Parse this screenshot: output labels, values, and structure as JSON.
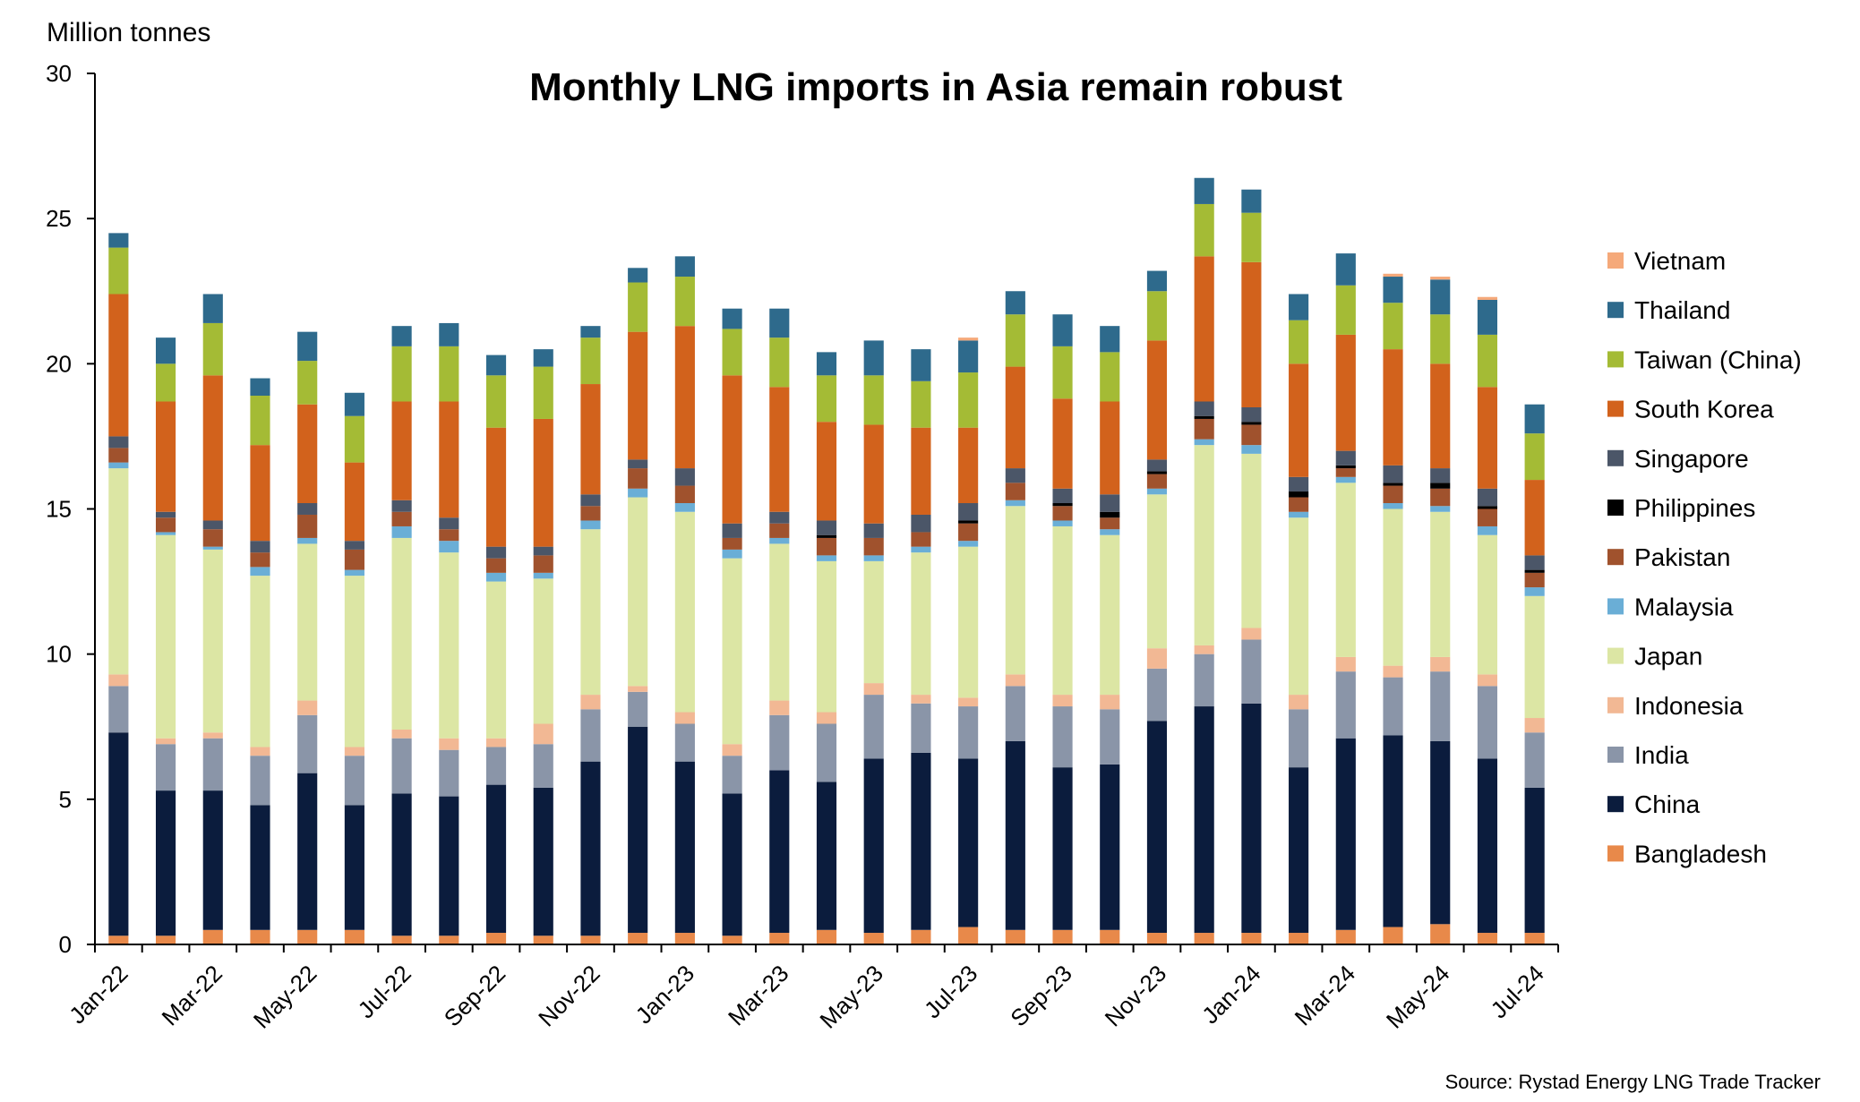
{
  "chart_data": {
    "type": "bar",
    "stacked": true,
    "title": "Monthly LNG imports in Asia remain robust",
    "ylabel": "Million tonnes",
    "source": "Source: Rystad Energy LNG Trade Tracker",
    "ylim": [
      0,
      30
    ],
    "yticks": [
      "0",
      "5",
      "10",
      "15",
      "20",
      "25",
      "30"
    ],
    "grid": false,
    "legend_position": "right",
    "x_tick_labels": [
      "Jan-22",
      "Mar-22",
      "May-22",
      "Jul-22",
      "Sep-22",
      "Nov-22",
      "Jan-23",
      "Mar-23",
      "May-23",
      "Jul-23",
      "Sep-23",
      "Nov-23",
      "Jan-24",
      "Mar-24",
      "May-24",
      "Jul-24"
    ],
    "categories": [
      "Jan-22",
      "Feb-22",
      "Mar-22",
      "Apr-22",
      "May-22",
      "Jun-22",
      "Jul-22",
      "Aug-22",
      "Sep-22",
      "Oct-22",
      "Nov-22",
      "Dec-22",
      "Jan-23",
      "Feb-23",
      "Mar-23",
      "Apr-23",
      "May-23",
      "Jun-23",
      "Jul-23",
      "Aug-23",
      "Sep-23",
      "Oct-23",
      "Nov-23",
      "Dec-23",
      "Jan-24",
      "Feb-24",
      "Mar-24",
      "Apr-24",
      "May-24",
      "Jun-24",
      "Jul-24"
    ],
    "series": [
      {
        "name": "Bangladesh",
        "color": "#E8894A",
        "values": [
          0.3,
          0.3,
          0.5,
          0.5,
          0.5,
          0.5,
          0.3,
          0.3,
          0.4,
          0.3,
          0.3,
          0.4,
          0.4,
          0.3,
          0.4,
          0.5,
          0.4,
          0.5,
          0.6,
          0.5,
          0.5,
          0.5,
          0.4,
          0.4,
          0.4,
          0.4,
          0.5,
          0.6,
          0.7,
          0.4,
          0.4
        ]
      },
      {
        "name": "China",
        "color": "#0B1C3D",
        "values": [
          7.0,
          5.0,
          4.8,
          4.3,
          5.4,
          4.3,
          4.9,
          4.8,
          5.1,
          5.1,
          6.0,
          7.1,
          5.9,
          4.9,
          5.6,
          5.1,
          6.0,
          6.1,
          5.8,
          6.5,
          5.6,
          5.7,
          7.3,
          7.8,
          7.9,
          5.7,
          6.6,
          6.6,
          6.3,
          6.0,
          5.0
        ]
      },
      {
        "name": "India",
        "color": "#8A95A8",
        "values": [
          1.6,
          1.6,
          1.8,
          1.7,
          2.0,
          1.7,
          1.9,
          1.6,
          1.3,
          1.5,
          1.8,
          1.2,
          1.3,
          1.3,
          1.9,
          2.0,
          2.2,
          1.7,
          1.8,
          1.9,
          2.1,
          1.9,
          1.8,
          1.8,
          2.2,
          2.0,
          2.3,
          2.0,
          2.4,
          2.5,
          1.9
        ]
      },
      {
        "name": "Indonesia",
        "color": "#F2B894",
        "values": [
          0.4,
          0.2,
          0.2,
          0.3,
          0.5,
          0.3,
          0.3,
          0.4,
          0.3,
          0.7,
          0.5,
          0.2,
          0.4,
          0.4,
          0.5,
          0.4,
          0.4,
          0.3,
          0.3,
          0.4,
          0.4,
          0.5,
          0.7,
          0.3,
          0.4,
          0.5,
          0.5,
          0.4,
          0.5,
          0.4,
          0.5
        ]
      },
      {
        "name": "Japan",
        "color": "#DCE6A4",
        "values": [
          7.1,
          7.0,
          6.3,
          5.9,
          5.4,
          5.9,
          6.6,
          6.4,
          5.4,
          5.0,
          5.7,
          6.5,
          6.9,
          6.4,
          5.4,
          5.2,
          4.2,
          4.9,
          5.2,
          5.8,
          5.8,
          5.5,
          5.3,
          6.9,
          6.0,
          6.1,
          6.0,
          5.4,
          5.0,
          4.8,
          4.2
        ]
      },
      {
        "name": "Malaysia",
        "color": "#6AAED6",
        "values": [
          0.2,
          0.1,
          0.1,
          0.3,
          0.2,
          0.2,
          0.4,
          0.4,
          0.3,
          0.2,
          0.3,
          0.3,
          0.3,
          0.3,
          0.2,
          0.2,
          0.2,
          0.2,
          0.2,
          0.2,
          0.2,
          0.2,
          0.2,
          0.2,
          0.3,
          0.2,
          0.2,
          0.2,
          0.2,
          0.3,
          0.3
        ]
      },
      {
        "name": "Pakistan",
        "color": "#A0522D",
        "values": [
          0.5,
          0.5,
          0.6,
          0.5,
          0.8,
          0.7,
          0.5,
          0.4,
          0.5,
          0.6,
          0.5,
          0.7,
          0.6,
          0.4,
          0.5,
          0.6,
          0.6,
          0.5,
          0.6,
          0.6,
          0.5,
          0.4,
          0.5,
          0.7,
          0.7,
          0.5,
          0.3,
          0.6,
          0.6,
          0.6,
          0.5
        ]
      },
      {
        "name": "Philippines",
        "color": "#000000",
        "values": [
          0,
          0,
          0,
          0,
          0,
          0,
          0,
          0,
          0,
          0,
          0,
          0,
          0,
          0,
          0,
          0.1,
          0,
          0,
          0.1,
          0,
          0.1,
          0.2,
          0.1,
          0.1,
          0.1,
          0.2,
          0.1,
          0.1,
          0.2,
          0.1,
          0.1
        ]
      },
      {
        "name": "Singapore",
        "color": "#4B5668",
        "values": [
          0.4,
          0.2,
          0.3,
          0.4,
          0.4,
          0.3,
          0.4,
          0.4,
          0.4,
          0.3,
          0.4,
          0.3,
          0.6,
          0.5,
          0.4,
          0.5,
          0.5,
          0.6,
          0.6,
          0.5,
          0.5,
          0.6,
          0.4,
          0.5,
          0.5,
          0.5,
          0.5,
          0.6,
          0.5,
          0.6,
          0.5
        ]
      },
      {
        "name": "South Korea",
        "color": "#D2621C",
        "values": [
          4.9,
          3.8,
          5.0,
          3.3,
          3.4,
          2.7,
          3.4,
          4.0,
          4.1,
          4.4,
          3.8,
          4.4,
          4.9,
          5.1,
          4.3,
          3.4,
          3.4,
          3.0,
          2.6,
          3.5,
          3.1,
          3.2,
          4.1,
          5.0,
          5.0,
          3.9,
          4.0,
          4.0,
          3.6,
          3.5,
          2.6
        ]
      },
      {
        "name": "Taiwan (China)",
        "color": "#A4BB35",
        "values": [
          1.6,
          1.3,
          1.8,
          1.7,
          1.5,
          1.6,
          1.9,
          1.9,
          1.8,
          1.8,
          1.6,
          1.7,
          1.7,
          1.6,
          1.7,
          1.6,
          1.7,
          1.6,
          1.9,
          1.8,
          1.8,
          1.7,
          1.7,
          1.8,
          1.7,
          1.5,
          1.7,
          1.6,
          1.7,
          1.8,
          1.6
        ]
      },
      {
        "name": "Thailand",
        "color": "#2E6A8C",
        "values": [
          0.5,
          0.9,
          1.0,
          0.6,
          1.0,
          0.8,
          0.7,
          0.8,
          0.7,
          0.6,
          0.4,
          0.5,
          0.7,
          0.7,
          1.0,
          0.8,
          1.2,
          1.1,
          1.1,
          0.8,
          1.1,
          0.9,
          0.7,
          0.9,
          0.8,
          0.9,
          1.1,
          0.9,
          1.2,
          1.2,
          1.0
        ]
      },
      {
        "name": "Vietnam",
        "color": "#F5A97A",
        "values": [
          0,
          0,
          0,
          0,
          0,
          0,
          0,
          0,
          0,
          0,
          0,
          0,
          0,
          0,
          0,
          0,
          0,
          0,
          0.1,
          0,
          0,
          0,
          0,
          0,
          0,
          0,
          0,
          0.1,
          0.1,
          0.1,
          0
        ]
      }
    ]
  }
}
